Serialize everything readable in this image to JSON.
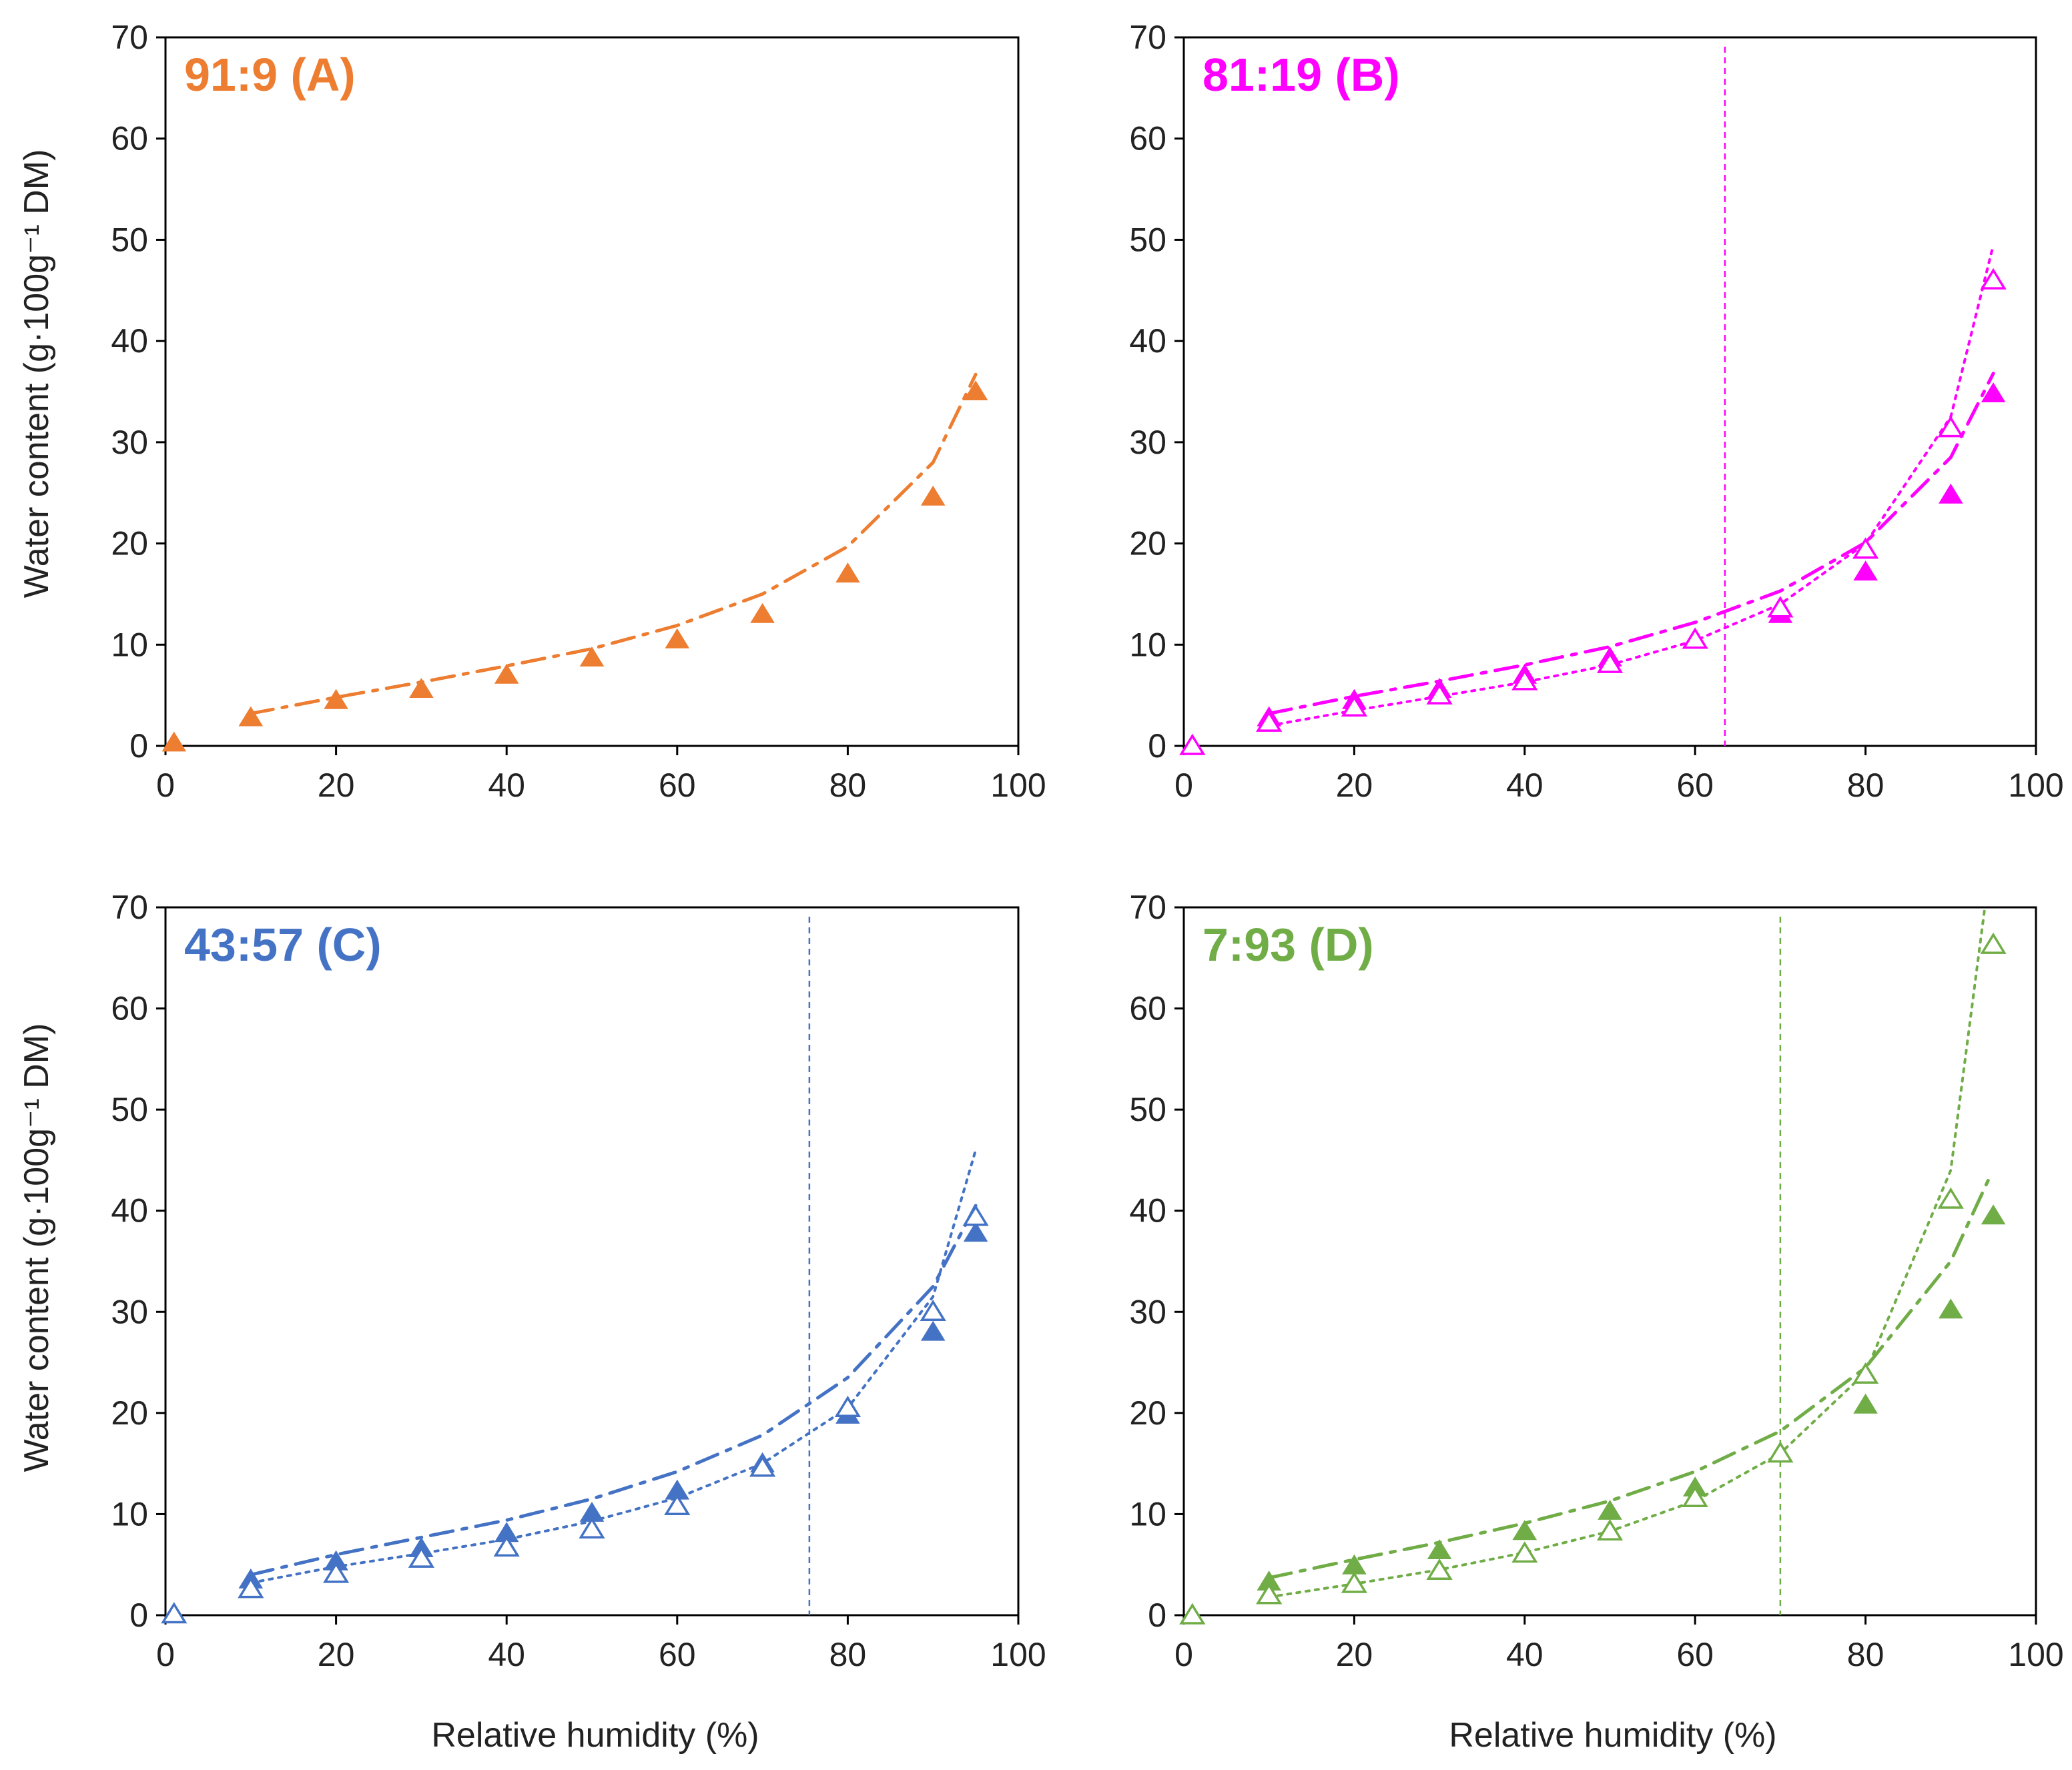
{
  "figure": {
    "ylabel": "Water content (g·100g⁻¹ DM)",
    "xlabel": "Relative humidity (%)"
  },
  "chart_data": [
    {
      "type": "scatter",
      "title": "91:9 (A)",
      "color": "#ED7D31",
      "xlim": [
        0,
        100
      ],
      "ylim": [
        0,
        70
      ],
      "xticks": [
        0,
        20,
        40,
        60,
        80,
        100
      ],
      "yticks": [
        0,
        10,
        20,
        30,
        40,
        50,
        60,
        70
      ],
      "vline": null,
      "series": [
        {
          "name": "filled",
          "marker": "filled-triangle",
          "x": [
            1,
            10,
            20,
            30,
            40,
            50,
            60,
            70,
            80,
            90,
            95
          ],
          "y": [
            0.3,
            2.8,
            4.5,
            5.6,
            7.0,
            8.7,
            10.5,
            13.0,
            17.0,
            24.6,
            35.0
          ]
        }
      ],
      "fits": [
        {
          "name": "fit-dashdot",
          "style": "dashdot",
          "x": [
            10,
            20,
            30,
            40,
            50,
            60,
            70,
            80,
            90,
            95
          ],
          "y": [
            3.2,
            4.8,
            6.3,
            7.9,
            9.6,
            11.9,
            15.0,
            19.7,
            28.0,
            36.7
          ]
        }
      ]
    },
    {
      "type": "scatter",
      "title": "81:19 (B)",
      "color": "#FF00FF",
      "xlim": [
        0,
        100
      ],
      "ylim": [
        0,
        70
      ],
      "xticks": [
        0,
        20,
        40,
        60,
        80,
        100
      ],
      "yticks": [
        0,
        10,
        20,
        30,
        40,
        50,
        60,
        70
      ],
      "vline": 63.5,
      "series": [
        {
          "name": "filled",
          "marker": "filled-triangle",
          "x": [
            10,
            20,
            30,
            40,
            50,
            60,
            70,
            80,
            90,
            95
          ],
          "y": [
            2.8,
            4.5,
            5.6,
            7.0,
            8.7,
            10.5,
            13.0,
            17.2,
            24.8,
            34.8
          ]
        },
        {
          "name": "open",
          "marker": "open-triangle",
          "x": [
            1,
            10,
            20,
            30,
            40,
            50,
            60,
            70,
            80,
            90,
            95
          ],
          "y": [
            0,
            2.3,
            3.8,
            5.0,
            6.4,
            8.1,
            10.5,
            13.6,
            19.4,
            31.4,
            46.0
          ]
        }
      ],
      "fits": [
        {
          "name": "fit-dashdot",
          "style": "dashdot",
          "x": [
            10,
            20,
            30,
            40,
            50,
            60,
            70,
            80,
            90,
            95
          ],
          "y": [
            3.2,
            4.9,
            6.4,
            8.0,
            9.8,
            12.2,
            15.3,
            20.1,
            28.5,
            36.8
          ]
        },
        {
          "name": "fit-dotted",
          "style": "dotted",
          "x": [
            10,
            20,
            30,
            40,
            50,
            60,
            70,
            80,
            90,
            95
          ],
          "y": [
            2.0,
            3.5,
            4.9,
            6.3,
            8.0,
            10.4,
            14.0,
            20.0,
            32.5,
            49.5
          ]
        }
      ]
    },
    {
      "type": "scatter",
      "title": "43:57 (C)",
      "color": "#4472C4",
      "xlim": [
        0,
        100
      ],
      "ylim": [
        0,
        70
      ],
      "xticks": [
        0,
        20,
        40,
        60,
        80,
        100
      ],
      "yticks": [
        0,
        10,
        20,
        30,
        40,
        50,
        60,
        70
      ],
      "vline": 75.5,
      "series": [
        {
          "name": "filled",
          "marker": "filled-triangle",
          "x": [
            10,
            20,
            30,
            40,
            50,
            60,
            70,
            80,
            90,
            95
          ],
          "y": [
            3.5,
            5.3,
            6.6,
            8.1,
            10.1,
            12.3,
            15.0,
            19.8,
            28.0,
            37.8
          ]
        },
        {
          "name": "open",
          "marker": "open-triangle",
          "x": [
            1,
            10,
            20,
            30,
            40,
            50,
            60,
            70,
            80,
            90,
            95
          ],
          "y": [
            0.1,
            2.6,
            4.1,
            5.6,
            6.7,
            8.5,
            10.8,
            14.6,
            20.5,
            30.0,
            39.4
          ]
        }
      ],
      "fits": [
        {
          "name": "fit-dashdot",
          "style": "dashdot",
          "x": [
            10,
            20,
            30,
            40,
            50,
            60,
            70,
            80,
            90,
            95
          ],
          "y": [
            4.0,
            6.0,
            7.7,
            9.4,
            11.5,
            14.2,
            17.8,
            23.5,
            32.5,
            40.5
          ]
        },
        {
          "name": "fit-dotted",
          "style": "dotted",
          "x": [
            10,
            20,
            30,
            40,
            50,
            60,
            70,
            80,
            90,
            95
          ],
          "y": [
            3.2,
            4.8,
            6.1,
            7.5,
            9.3,
            11.6,
            15.0,
            20.5,
            31.5,
            46.0
          ]
        }
      ]
    },
    {
      "type": "scatter",
      "title": "7:93 (D)",
      "color": "#70AD47",
      "xlim": [
        0,
        100
      ],
      "ylim": [
        0,
        70
      ],
      "xticks": [
        0,
        20,
        40,
        60,
        80,
        100
      ],
      "yticks": [
        0,
        10,
        20,
        30,
        40,
        50,
        60,
        70
      ],
      "vline": 70,
      "series": [
        {
          "name": "filled",
          "marker": "filled-triangle",
          "x": [
            10,
            20,
            30,
            40,
            50,
            60,
            80,
            90,
            95
          ],
          "y": [
            3.3,
            4.9,
            6.4,
            8.3,
            10.3,
            12.6,
            20.8,
            30.2,
            39.5
          ]
        },
        {
          "name": "open",
          "marker": "open-triangle",
          "x": [
            1,
            10,
            20,
            30,
            40,
            50,
            60,
            70,
            80,
            90,
            95
          ],
          "y": [
            0,
            2.0,
            3.1,
            4.4,
            6.1,
            8.3,
            11.6,
            16.0,
            23.8,
            41.1,
            66.3
          ]
        }
      ],
      "fits": [
        {
          "name": "fit-dashdot",
          "style": "dashdot",
          "x": [
            10,
            20,
            30,
            40,
            50,
            60,
            70,
            80,
            90,
            94.5
          ],
          "y": [
            3.7,
            5.5,
            7.2,
            9.1,
            11.3,
            14.2,
            18.2,
            24.5,
            35.0,
            43.2
          ]
        },
        {
          "name": "fit-dotted",
          "style": "dotted",
          "x": [
            10,
            20,
            30,
            40,
            50,
            60,
            70,
            80,
            90,
            94
          ],
          "y": [
            1.8,
            3.1,
            4.5,
            6.2,
            8.3,
            11.3,
            16.0,
            24.0,
            44.0,
            70.0
          ]
        }
      ]
    }
  ]
}
